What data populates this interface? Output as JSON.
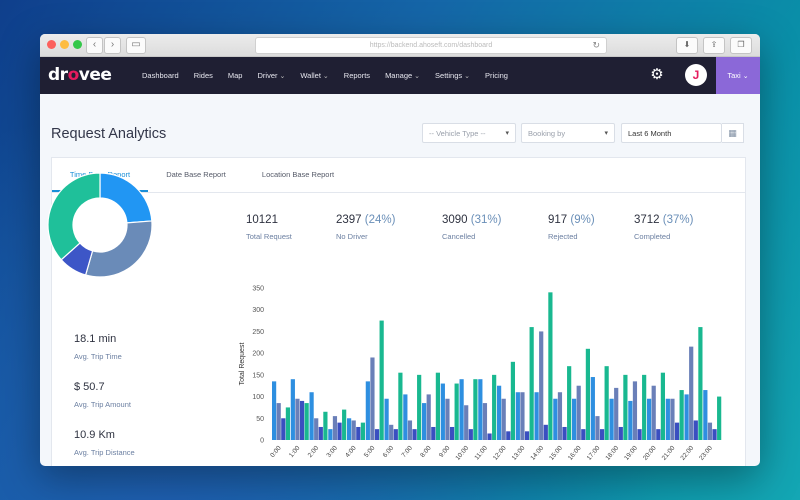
{
  "browser": {
    "url": "https://backend.ahoseft.com/dashboard"
  },
  "app": {
    "logo": "drovee",
    "nav": [
      {
        "label": "Dashboard",
        "dropdown": false
      },
      {
        "label": "Rides",
        "dropdown": false
      },
      {
        "label": "Map",
        "dropdown": false
      },
      {
        "label": "Driver",
        "dropdown": true
      },
      {
        "label": "Wallet",
        "dropdown": true
      },
      {
        "label": "Reports",
        "dropdown": false
      },
      {
        "label": "Manage",
        "dropdown": true
      },
      {
        "label": "Settings",
        "dropdown": true
      },
      {
        "label": "Pricing",
        "dropdown": false
      }
    ],
    "avatar_letter": "J",
    "service": "Taxi",
    "colors": {
      "nav_bg": "#1f1f33",
      "accent": "#8b68d8",
      "brand": "#e51b5d",
      "link": "#1a8fd8"
    }
  },
  "page": {
    "title": "Request Analytics",
    "filters": {
      "vehicle_type": "-- Vehicle Type --",
      "booking_by": "Booking by",
      "date_range": "Last 6 Month"
    },
    "tabs": [
      "Time Base Report",
      "Date Base Report",
      "Location Base Report"
    ],
    "active_tab": 0
  },
  "stats": [
    {
      "value": "10121",
      "pct": "",
      "label": "Total Request"
    },
    {
      "value": "2397",
      "pct": "(24%)",
      "label": "No Driver"
    },
    {
      "value": "3090",
      "pct": "(31%)",
      "label": "Cancelled"
    },
    {
      "value": "917",
      "pct": "(9%)",
      "label": "Rejected"
    },
    {
      "value": "3712",
      "pct": "(37%)",
      "label": "Completed"
    }
  ],
  "side_stats": [
    {
      "value": "18.1 min",
      "label": "Avg. Trip Time"
    },
    {
      "value": "$ 50.7",
      "label": "Avg. Trip Amount"
    },
    {
      "value": "10.9 Km",
      "label": "Avg. Trip Distance"
    }
  ],
  "chart_data": [
    {
      "type": "pie",
      "variant": "donut",
      "categories": [
        "No Driver",
        "Cancelled",
        "Rejected",
        "Completed"
      ],
      "values": [
        24,
        31,
        9,
        37
      ],
      "colors": [
        "#2196f3",
        "#6a8bb8",
        "#3d56c7",
        "#1fc09a"
      ]
    },
    {
      "type": "bar",
      "ylabel": "Total Request",
      "ylim": [
        0,
        350
      ],
      "yticks": [
        0,
        50,
        100,
        150,
        200,
        250,
        300,
        350
      ],
      "categories": [
        "0:00",
        "1:00",
        "2:00",
        "3:00",
        "4:00",
        "5:00",
        "6:00",
        "7:00",
        "8:00",
        "9:00",
        "10:00",
        "11:00",
        "12:00",
        "13:00",
        "14:00",
        "15:00",
        "16:00",
        "17:00",
        "18:00",
        "19:00",
        "20:00",
        "21:00",
        "22:00",
        "23:00"
      ],
      "series": [
        {
          "color": "#2e8fe0",
          "values": [
            135,
            140,
            110,
            25,
            50,
            135,
            95,
            105,
            85,
            130,
            140,
            140,
            125,
            110,
            110,
            95,
            95,
            145,
            95,
            90,
            95,
            95,
            105,
            115
          ]
        },
        {
          "color": "#6a7fb8",
          "values": [
            85,
            95,
            50,
            55,
            45,
            190,
            35,
            45,
            105,
            95,
            80,
            85,
            95,
            110,
            250,
            110,
            125,
            55,
            120,
            135,
            125,
            95,
            215,
            40
          ]
        },
        {
          "color": "#3a4fc0",
          "values": [
            50,
            90,
            30,
            40,
            30,
            25,
            25,
            25,
            30,
            30,
            25,
            15,
            20,
            20,
            35,
            30,
            25,
            25,
            30,
            25,
            25,
            40,
            45,
            25
          ]
        },
        {
          "color": "#19b890",
          "values": [
            75,
            85,
            65,
            70,
            40,
            275,
            155,
            150,
            155,
            130,
            140,
            150,
            180,
            260,
            340,
            170,
            210,
            170,
            150,
            150,
            155,
            115,
            260,
            100
          ]
        }
      ]
    }
  ]
}
